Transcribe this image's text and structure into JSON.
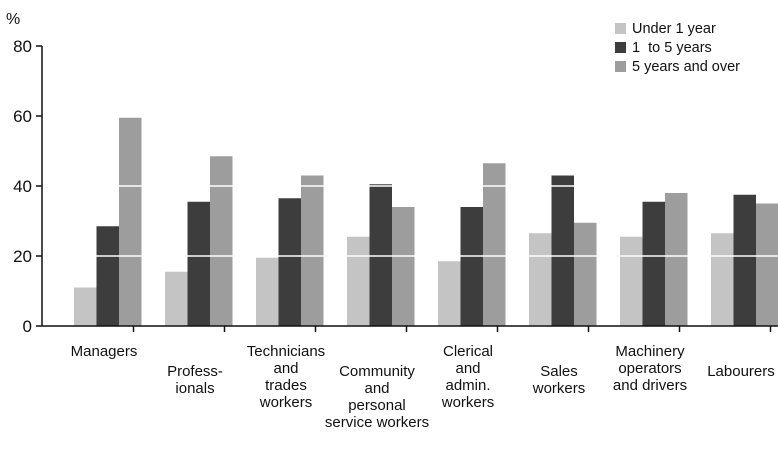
{
  "chart_data": {
    "type": "bar",
    "title": "",
    "xlabel": "",
    "ylabel": "%",
    "ylim": [
      0,
      80
    ],
    "yticks": [
      0,
      20,
      40,
      60,
      80
    ],
    "grid": true,
    "legend_position": "top-right",
    "categories": [
      "Managers",
      "Profess-ionals",
      "Technicians and trades workers",
      "Community and personal service workers",
      "Clerical and admin. workers",
      "Sales workers",
      "Machinery operators and drivers",
      "Labourers"
    ],
    "category_label_lines": [
      [
        "Managers"
      ],
      [
        "Profess-",
        "ionals"
      ],
      [
        "Technicians",
        "and",
        "trades",
        "workers"
      ],
      [
        "Community",
        "and",
        "personal",
        "service workers"
      ],
      [
        "Clerical",
        "and",
        "admin.",
        "workers"
      ],
      [
        "Sales",
        "workers"
      ],
      [
        "Machinery",
        "operators",
        "and drivers"
      ],
      [
        "Labourers"
      ]
    ],
    "series": [
      {
        "name": "Under 1 year",
        "color": "#c4c4c4",
        "values": [
          11,
          15.5,
          19.5,
          25.5,
          18.5,
          26.5,
          25.5,
          26.5
        ]
      },
      {
        "name": "1  to 5 years",
        "color": "#3d3d3d",
        "values": [
          28.5,
          35.5,
          36.5,
          40.5,
          34,
          43,
          35.5,
          37.5
        ]
      },
      {
        "name": "5 years and over",
        "color": "#9d9d9d",
        "values": [
          59.5,
          48.5,
          43,
          34,
          46.5,
          29.5,
          38,
          35
        ]
      }
    ]
  }
}
